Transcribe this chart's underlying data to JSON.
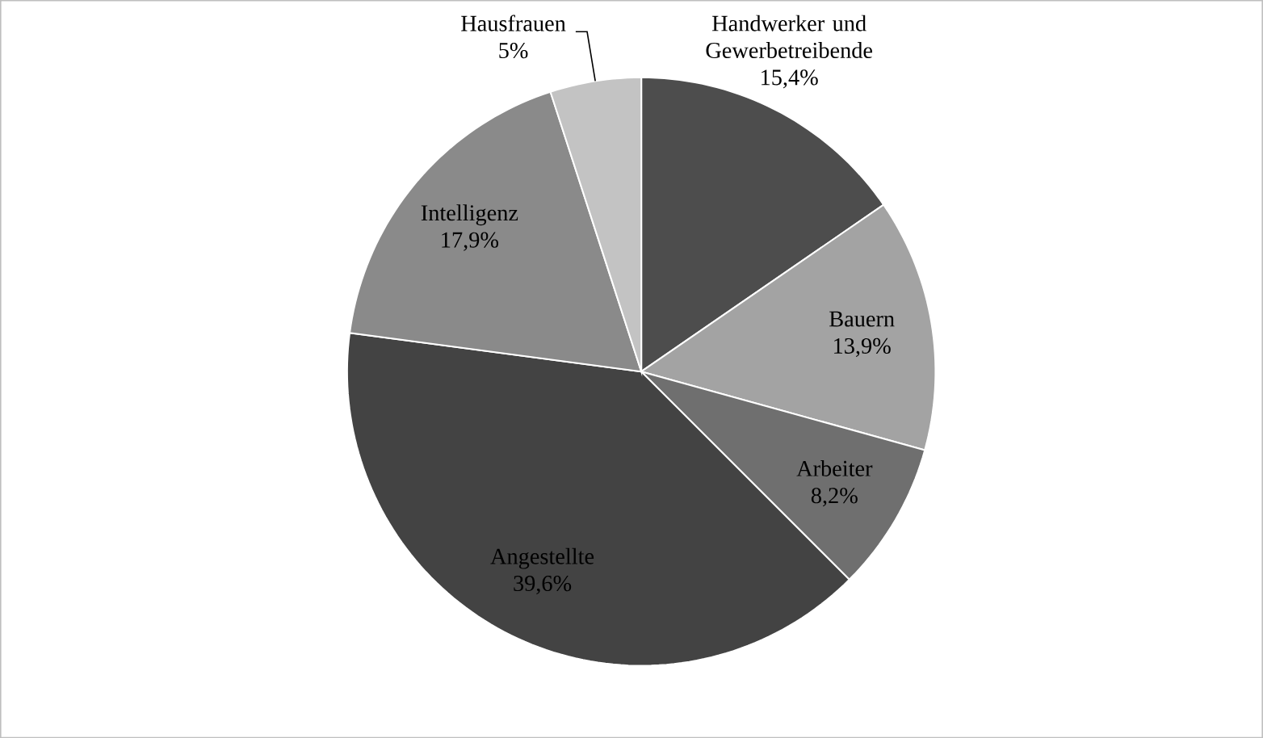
{
  "chart_data": {
    "type": "pie",
    "categories": [
      "Handwerker und Gewerbetreibende",
      "Bauern",
      "Arbeiter",
      "Angestellte",
      "Intelligenz",
      "Hausfrauen"
    ],
    "values": [
      15.4,
      13.9,
      8.2,
      39.6,
      17.9,
      5
    ],
    "value_labels": [
      "15,4%",
      "13,9%",
      "8,2%",
      "39,6%",
      "17,9%",
      "5%"
    ],
    "colors": [
      "#4d4d4d",
      "#a3a3a3",
      "#6f6f6f",
      "#434343",
      "#8a8a8a",
      "#c3c3c3"
    ]
  }
}
